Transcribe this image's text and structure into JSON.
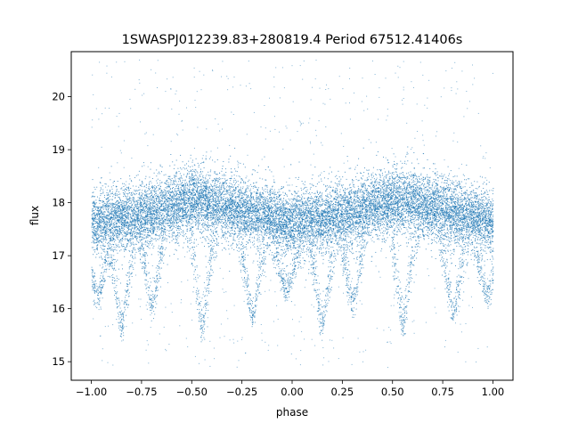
{
  "chart_data": {
    "type": "scatter",
    "title": "1SWASPJ012239.83+280819.4 Period 67512.41406s",
    "xlabel": "phase",
    "ylabel": "flux",
    "xlim": [
      -1.1,
      1.1
    ],
    "ylim": [
      14.65,
      20.85
    ],
    "x_ticks": [
      -1.0,
      -0.75,
      -0.5,
      -0.25,
      0.0,
      0.25,
      0.5,
      0.75,
      1.0
    ],
    "x_tick_labels": [
      "−1.00",
      "−0.75",
      "−0.50",
      "−0.25",
      "0.00",
      "0.25",
      "0.50",
      "0.75",
      "1.00"
    ],
    "y_ticks": [
      15,
      16,
      17,
      18,
      19,
      20
    ],
    "y_tick_labels": [
      "15",
      "16",
      "17",
      "18",
      "19",
      "20"
    ],
    "grid": false,
    "legend": "none",
    "marker_color": "#1f77b4",
    "series": [
      {
        "x_range": [
          -1.0,
          1.0
        ],
        "band_center": [
          {
            "x": -1.0,
            "y": 17.62
          },
          {
            "x": -0.75,
            "y": 17.75
          },
          {
            "x": -0.5,
            "y": 18.05
          },
          {
            "x": -0.25,
            "y": 17.85
          },
          {
            "x": 0.0,
            "y": 17.62
          },
          {
            "x": 0.25,
            "y": 17.75
          },
          {
            "x": 0.5,
            "y": 18.05
          },
          {
            "x": 0.75,
            "y": 17.85
          },
          {
            "x": 1.0,
            "y": 17.62
          }
        ],
        "band_lower_edge": [
          {
            "x": -1.0,
            "y": 16.9
          },
          {
            "x": -0.5,
            "y": 17.3
          },
          {
            "x": 0.0,
            "y": 16.9
          },
          {
            "x": 0.5,
            "y": 17.3
          },
          {
            "x": 1.0,
            "y": 16.9
          }
        ],
        "band_upper_edge": [
          {
            "x": -1.0,
            "y": 18.3
          },
          {
            "x": -0.5,
            "y": 18.8
          },
          {
            "x": 0.0,
            "y": 18.3
          },
          {
            "x": 0.5,
            "y": 18.8
          },
          {
            "x": 1.0,
            "y": 18.3
          }
        ],
        "dips": [
          {
            "x": -0.97,
            "y_min": 16.2
          },
          {
            "x": -0.85,
            "y_min": 15.6
          },
          {
            "x": -0.7,
            "y_min": 16.0
          },
          {
            "x": -0.45,
            "y_min": 15.55
          },
          {
            "x": -0.2,
            "y_min": 15.8
          },
          {
            "x": -0.03,
            "y_min": 16.3
          },
          {
            "x": 0.15,
            "y_min": 15.6
          },
          {
            "x": 0.3,
            "y_min": 16.0
          },
          {
            "x": 0.55,
            "y_min": 15.55
          },
          {
            "x": 0.8,
            "y_min": 15.8
          },
          {
            "x": 0.97,
            "y_min": 16.2
          }
        ],
        "outlier_y_range": [
          14.9,
          20.7
        ]
      }
    ]
  }
}
